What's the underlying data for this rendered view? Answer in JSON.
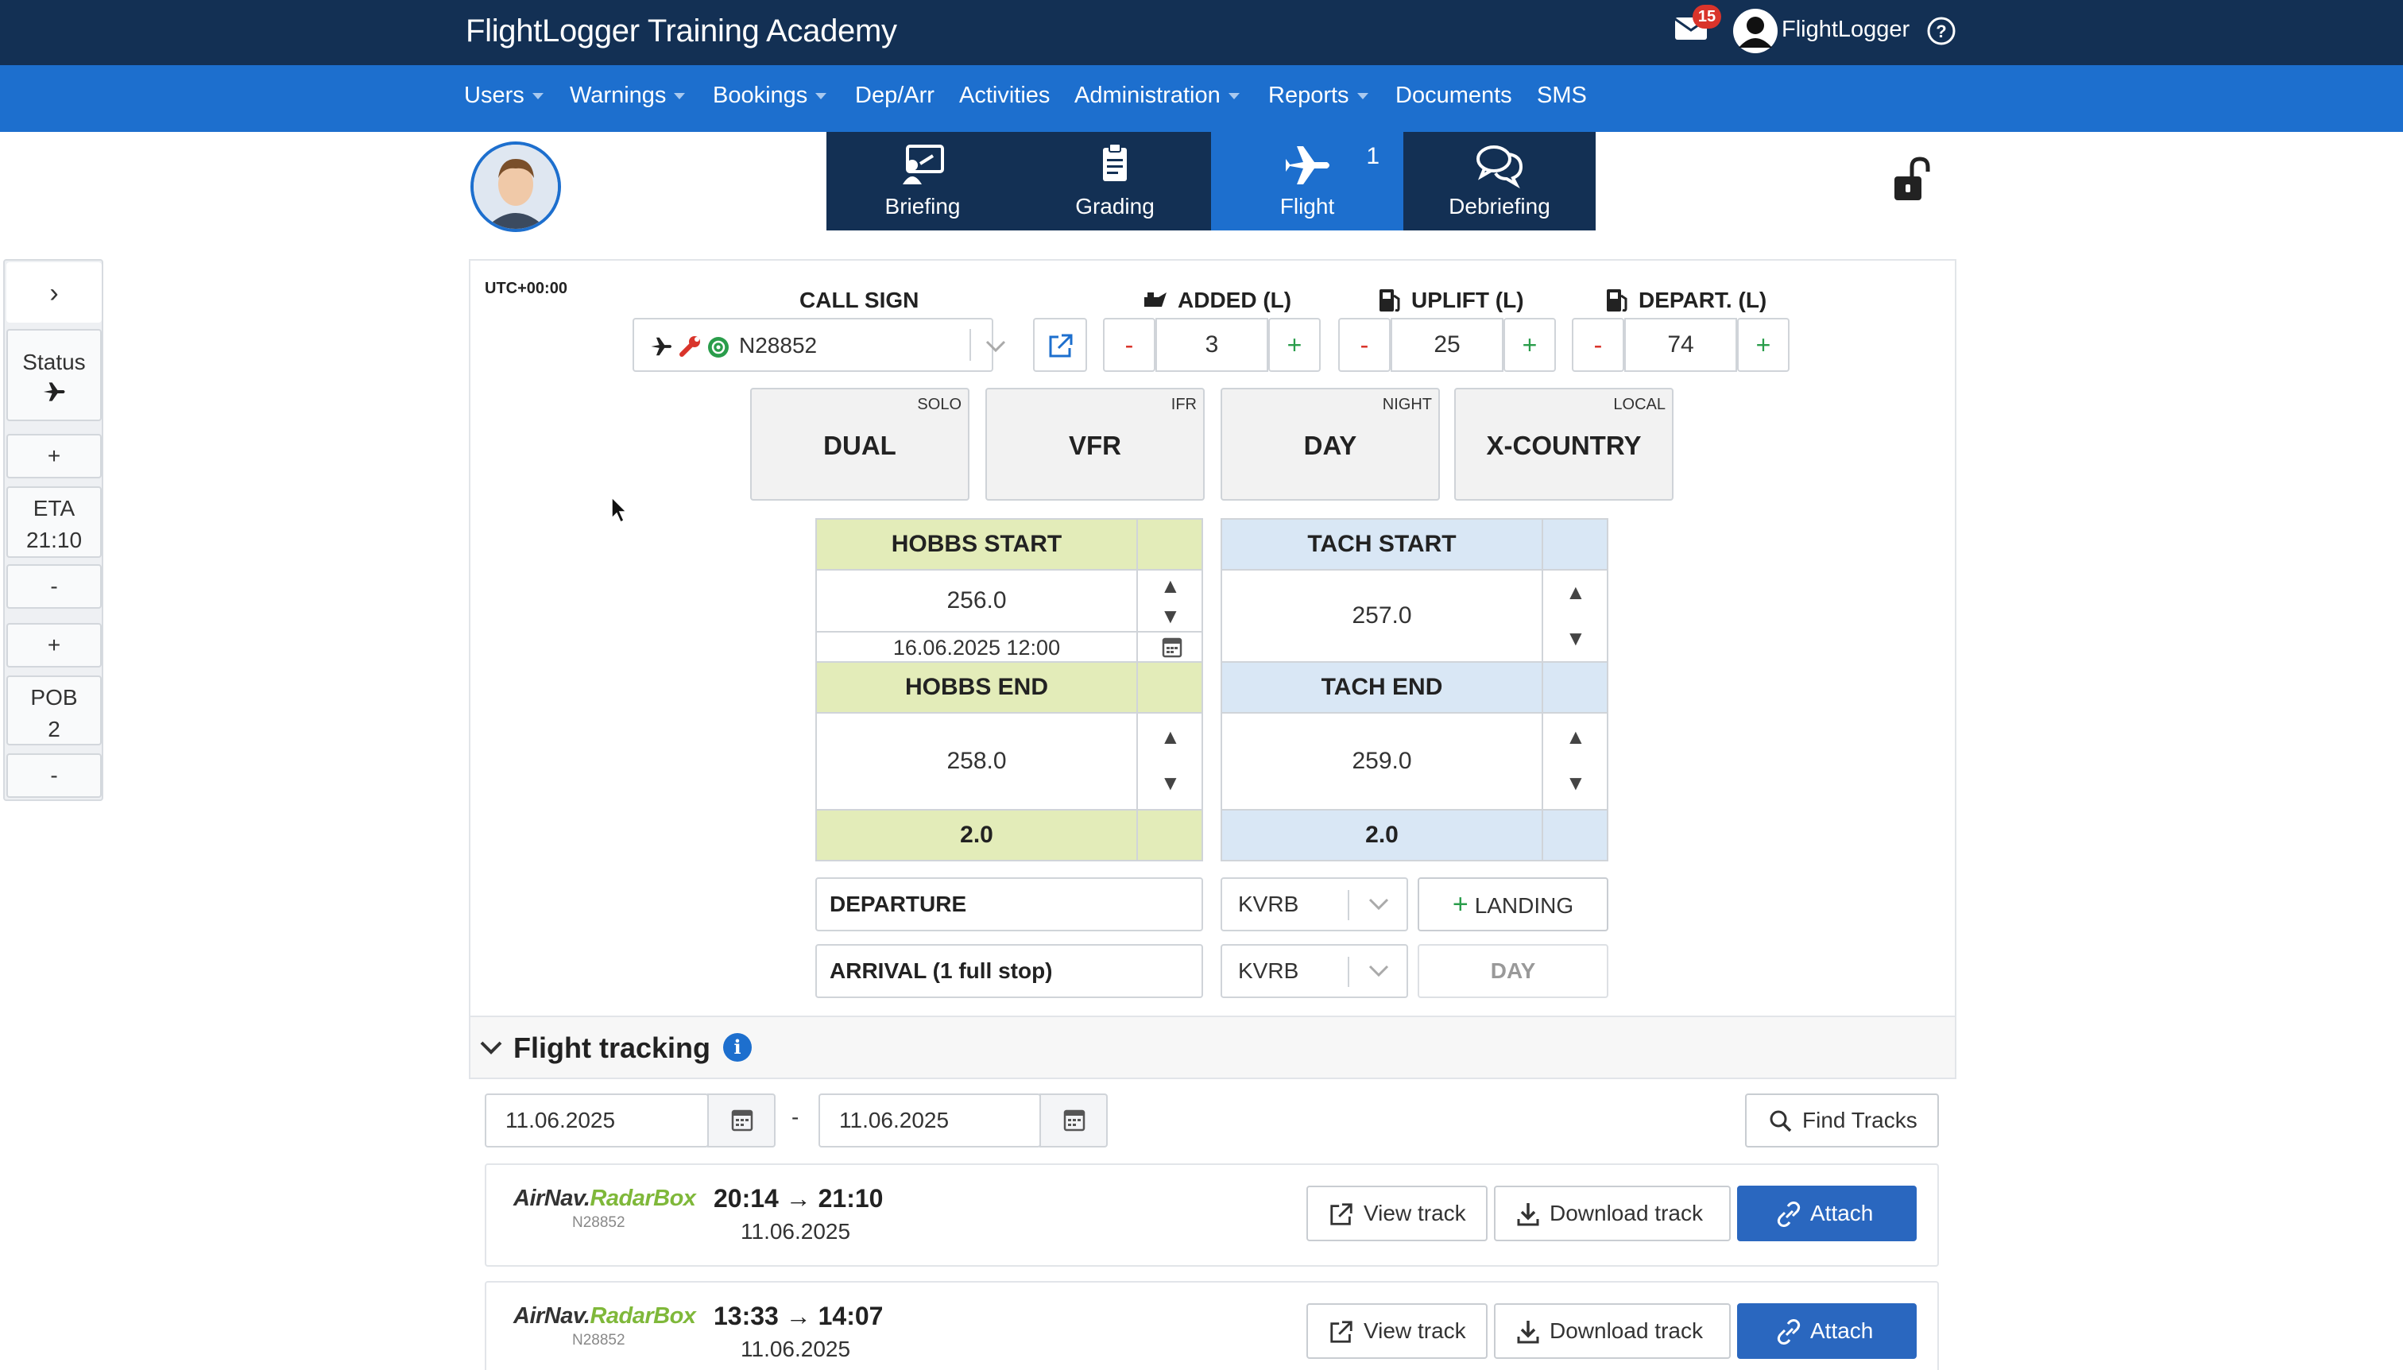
{
  "app": {
    "title": "FlightLogger Training Academy",
    "mail_count": "15",
    "user_name": "FlightLogger"
  },
  "nav": {
    "items": [
      {
        "label": "Users",
        "dropdown": true
      },
      {
        "label": "Warnings",
        "dropdown": true
      },
      {
        "label": "Bookings",
        "dropdown": true
      },
      {
        "label": "Dep/Arr",
        "dropdown": false
      },
      {
        "label": "Activities",
        "dropdown": false
      },
      {
        "label": "Administration",
        "dropdown": true
      },
      {
        "label": "Reports",
        "dropdown": true
      },
      {
        "label": "Documents",
        "dropdown": false
      },
      {
        "label": "SMS",
        "dropdown": false
      }
    ]
  },
  "tabs": [
    {
      "label": "Briefing",
      "icon": "briefing-icon"
    },
    {
      "label": "Grading",
      "icon": "clipboard-icon"
    },
    {
      "label": "Flight",
      "icon": "airplane-icon",
      "count": "1",
      "active": true
    },
    {
      "label": "Debriefing",
      "icon": "chat-bubbles-icon"
    }
  ],
  "sidebar": {
    "expand": "›",
    "status_label": "Status",
    "plus": "+",
    "minus": "-",
    "eta_label": "ETA",
    "eta_value": "21:10",
    "pob_label": "POB",
    "pob_value": "2"
  },
  "flight": {
    "utc": "UTC+00:00",
    "call_sign_label": "CALL SIGN",
    "call_sign": "N28852",
    "added_label": "ADDED (L)",
    "added_value": "3",
    "uplift_label": "UPLIFT (L)",
    "uplift_value": "25",
    "depart_label": "DEPART. (L)",
    "depart_value": "74",
    "minus": "-",
    "plus": "+",
    "toggles": [
      {
        "alt": "SOLO",
        "value": "DUAL"
      },
      {
        "alt": "IFR",
        "value": "VFR"
      },
      {
        "alt": "NIGHT",
        "value": "DAY"
      },
      {
        "alt": "LOCAL",
        "value": "X-COUNTRY"
      }
    ],
    "hobbs_start_label": "HOBBS START",
    "hobbs_start": "256.0",
    "hobbs_date": "16.06.2025 12:00",
    "hobbs_end_label": "HOBBS END",
    "hobbs_end": "258.0",
    "hobbs_total": "2.0",
    "tach_start_label": "TACH START",
    "tach_start": "257.0",
    "tach_end_label": "TACH END",
    "tach_end": "259.0",
    "tach_total": "2.0",
    "up": "▲",
    "down": "▼",
    "departure_label": "DEPARTURE",
    "departure_airport": "KVRB",
    "landing_label": "LANDING",
    "arrival_label": "ARRIVAL (1 full stop)",
    "arrival_airport": "KVRB",
    "arrival_day": "DAY"
  },
  "tracking": {
    "title": "Flight tracking",
    "info": "i",
    "date_from": "11.06.2025",
    "date_to": "11.06.2025",
    "dash": "-",
    "find_label": "Find Tracks",
    "rows": [
      {
        "provider_a": "AirNav.",
        "provider_b": "RadarBox",
        "reg": "N28852",
        "times": "20:14 → 21:10",
        "date": "11.06.2025",
        "view": "View track",
        "download": "Download track",
        "attach": "Attach"
      },
      {
        "provider_a": "AirNav.",
        "provider_b": "RadarBox",
        "reg": "N28852",
        "times": "13:33 → 14:07",
        "date": "11.06.2025",
        "view": "View track",
        "download": "Download track",
        "attach": "Attach"
      }
    ]
  },
  "colors": {
    "topbar": "#133054",
    "navbar": "#1d6fce",
    "hobbs": "#e3ecb9",
    "tach": "#d9e7f5",
    "attach": "#2a67bf",
    "minus": "#d9342b",
    "plus": "#2a9d4b"
  }
}
